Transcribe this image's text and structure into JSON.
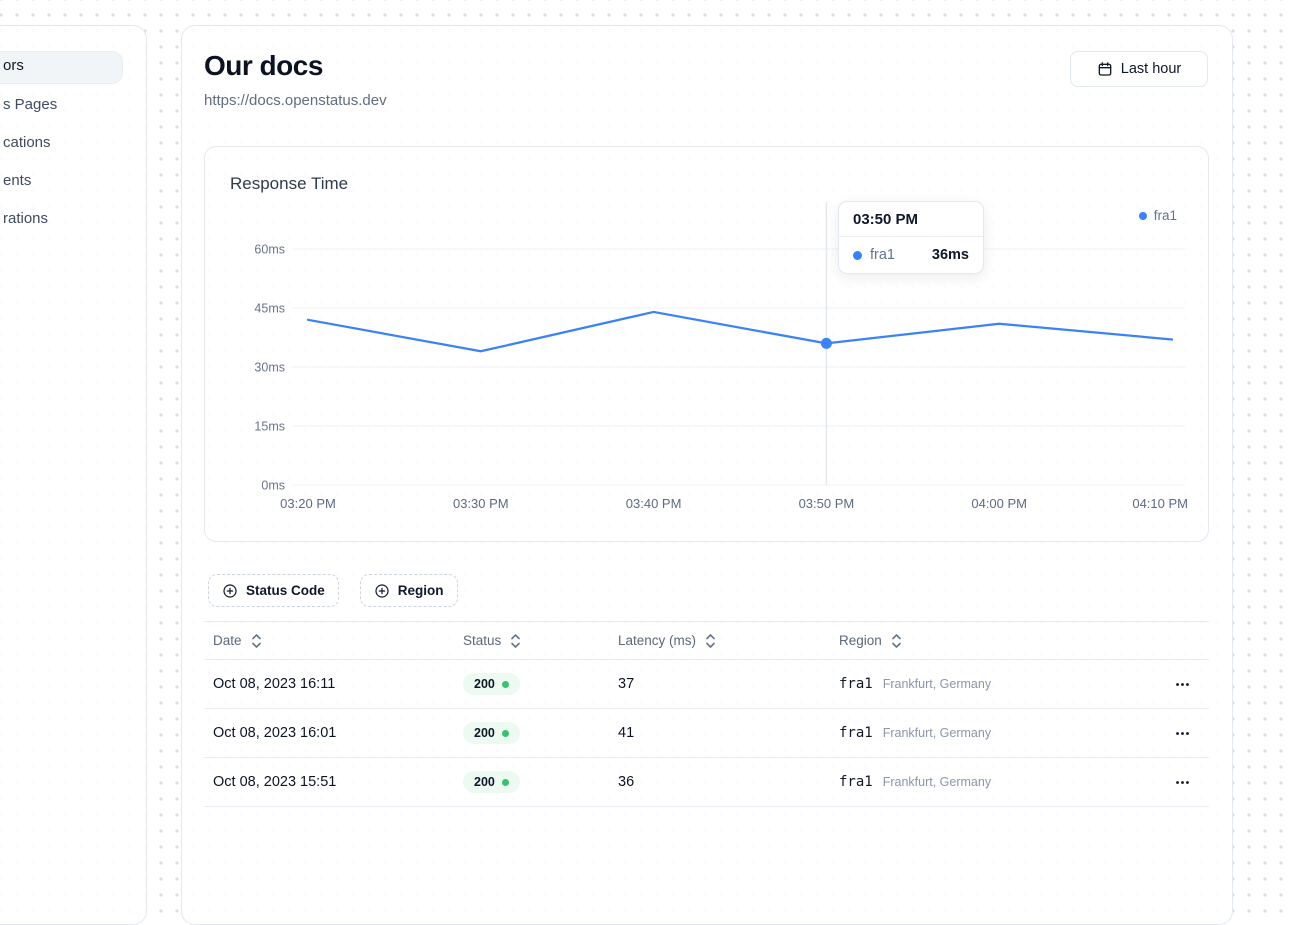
{
  "sidebar": {
    "items": [
      {
        "label": "ors",
        "active": true
      },
      {
        "label": "s Pages",
        "active": false
      },
      {
        "label": "cations",
        "active": false
      },
      {
        "label": "ents",
        "active": false
      },
      {
        "label": "rations",
        "active": false
      }
    ]
  },
  "header": {
    "title": "Our docs",
    "url": "https://docs.openstatus.dev",
    "time_range_label": "Last hour"
  },
  "chart": {
    "title": "Response Time",
    "legend": [
      {
        "name": "fra1",
        "color": "#3b82f6"
      }
    ],
    "tooltip": {
      "time": "03:50 PM",
      "series": "fra1",
      "value": "36ms"
    }
  },
  "chart_data": {
    "type": "line",
    "x": [
      "03:20 PM",
      "03:30 PM",
      "03:40 PM",
      "03:50 PM",
      "04:00 PM",
      "04:10 PM"
    ],
    "series": [
      {
        "name": "fra1",
        "values": [
          42,
          34,
          44,
          36,
          41,
          37
        ],
        "color": "#3b82f6"
      }
    ],
    "yticks": [
      0,
      15,
      30,
      45,
      60
    ],
    "ytick_suffix": "ms",
    "ylim": [
      0,
      60
    ],
    "xlabel": "",
    "ylabel": "",
    "grid": true,
    "legend_position": "top-right",
    "active_index": 3,
    "active_tooltip": {
      "time": "03:50 PM",
      "series": "fra1",
      "value_ms": 36
    }
  },
  "filters": [
    {
      "label": "Status Code"
    },
    {
      "label": "Region"
    }
  ],
  "table": {
    "columns": [
      "Date",
      "Status",
      "Latency (ms)",
      "Region"
    ],
    "rows": [
      {
        "date": "Oct 08, 2023 16:11",
        "status": "200",
        "latency": "37",
        "region_code": "fra1",
        "region_name": "Frankfurt, Germany"
      },
      {
        "date": "Oct 08, 2023 16:01",
        "status": "200",
        "latency": "41",
        "region_code": "fra1",
        "region_name": "Frankfurt, Germany"
      },
      {
        "date": "Oct 08, 2023 15:51",
        "status": "200",
        "latency": "36",
        "region_code": "fra1",
        "region_name": "Frankfurt, Germany"
      }
    ]
  },
  "colors": {
    "accent_blue": "#3b82f6",
    "status_green": "#36c26e",
    "badge_bg": "#ecfaf1",
    "grid_line": "#eef1f6",
    "cursor_line": "#e3e8ee",
    "muted_text": "#64748b"
  }
}
